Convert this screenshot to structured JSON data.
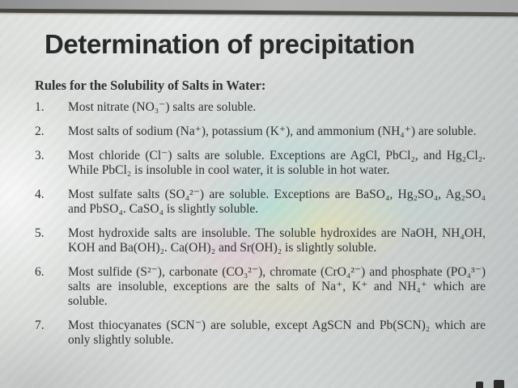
{
  "slide": {
    "title": "Determination of precipitation",
    "subtitle": "Rules for the Solubility of Salts in Water:",
    "rules": [
      {
        "number": "1.",
        "text": "Most nitrate (NO₃⁻) salts are soluble."
      },
      {
        "number": "2.",
        "text": "Most salts of sodium (Na⁺), potassium (K⁺), and ammonium (NH₄⁺) are soluble."
      },
      {
        "number": "3.",
        "text": "Most chloride (Cl⁻) salts are soluble. Exceptions are AgCl, PbCl₂, and Hg₂Cl₂. While PbCl₂ is insoluble in cool water, it is soluble in hot water."
      },
      {
        "number": "4.",
        "text": "Most sulfate salts (SO₄²⁻) are soluble. Exceptions are BaSO₄, Hg₂SO₄, Ag₂SO₄ and PbSO₄. CaSO₄ is slightly soluble."
      },
      {
        "number": "5.",
        "text": "Most hydroxide salts are insoluble. The soluble hydroxides are NaOH, NH₄OH, KOH and Ba(OH)₂. Ca(OH)₂ and Sr(OH)₂ is slightly soluble."
      },
      {
        "number": "6.",
        "text": "Most sulfide (S²⁻), carbonate (CO₃²⁻), chromate (CrO₄²⁻) and phosphate (PO₄³⁻) salts are insoluble, exceptions are the salts of Na⁺, K⁺ and NH₄⁺ which are soluble."
      },
      {
        "number": "7.",
        "text": "Most thiocyanates (SCN⁻) are soluble, except AgSCN and Pb(SCN)₂ which are only slightly soluble."
      }
    ],
    "colors": {
      "title_text": "#1a1a1b",
      "body_text": "#232324",
      "screen_background": "#d6d9d7",
      "bezel": "#45423c"
    }
  }
}
